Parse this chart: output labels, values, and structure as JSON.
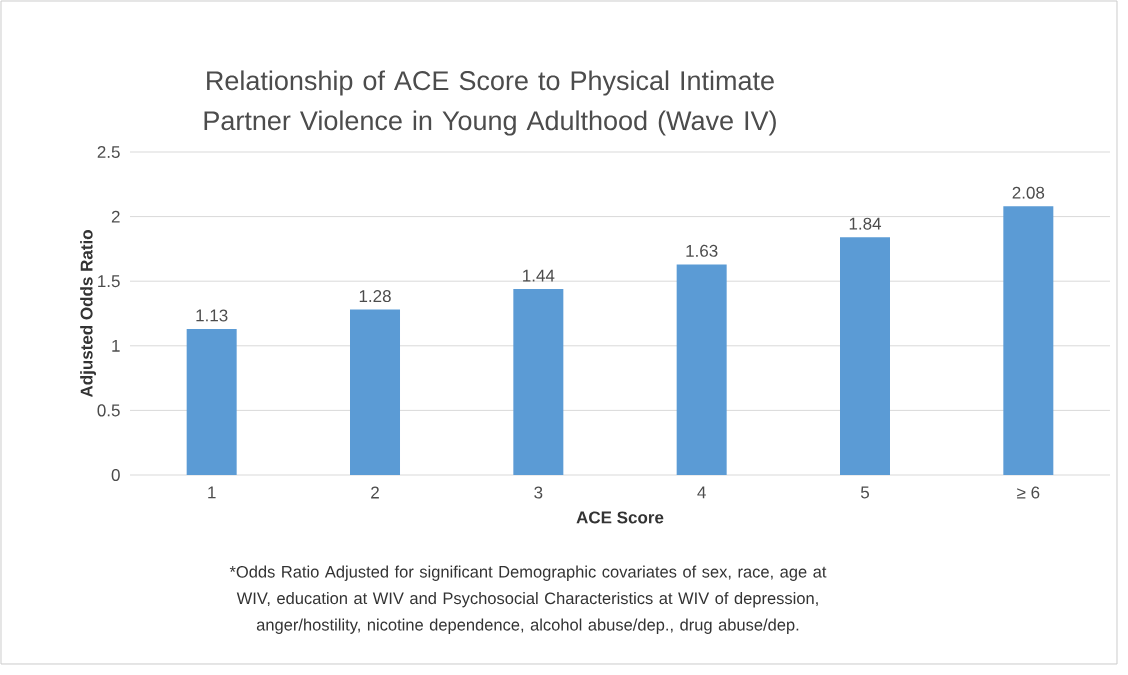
{
  "chart_data": {
    "type": "bar",
    "title": "Relationship of ACE Score to Physical Intimate Partner Violence in Young Adulthood (Wave IV)",
    "xlabel": "ACE Score",
    "ylabel": "Adjusted Odds Ratio",
    "categories": [
      "1",
      "2",
      "3",
      "4",
      "5",
      "≥ 6"
    ],
    "values": [
      1.13,
      1.28,
      1.44,
      1.63,
      1.84,
      2.08
    ],
    "color": "#5b9bd5",
    "ylim": [
      0,
      2.5
    ],
    "yticks": [
      0,
      0.5,
      1,
      1.5,
      2,
      2.5
    ],
    "grid": "y",
    "data_labels": true,
    "annotations": [
      "*Odds Ratio Adjusted for significant Demographic covariates of sex, race, age at WIV, education at WIV and Psychosocial Characteristics at WIV of depression, anger/hostility, nicotine dependence, alcohol abuse/dep., drug abuse/dep."
    ]
  }
}
